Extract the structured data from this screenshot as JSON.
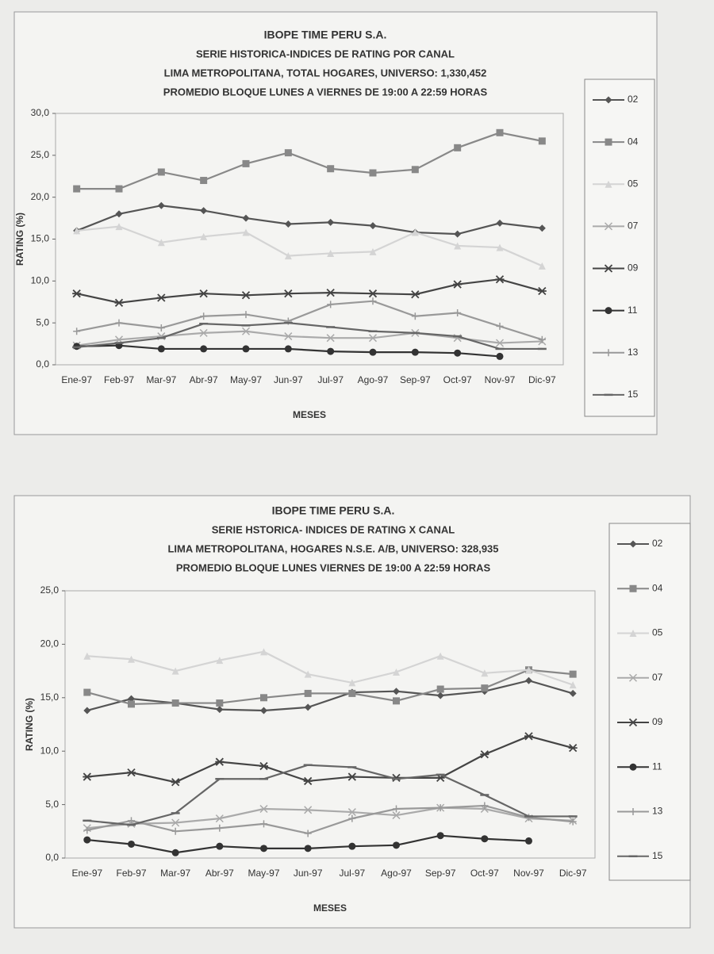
{
  "chart_data": [
    {
      "type": "line",
      "title": "IBOPE TIME PERU S.A.",
      "subtitles": [
        "SERIE HISTORICA-INDICES DE RATING POR CANAL",
        "LIMA METROPOLITANA, TOTAL HOGARES, UNIVERSO: 1,330,452",
        "PROMEDIO BLOQUE LUNES A VIERNES DE 19:00 A 22:59 HORAS"
      ],
      "x_label": "MESES",
      "y_label": "RATING (%)",
      "categories": [
        "Ene-97",
        "Feb-97",
        "Mar-97",
        "Abr-97",
        "May-97",
        "Jun-97",
        "Jul-97",
        "Ago-97",
        "Sep-97",
        "Oct-97",
        "Nov-97",
        "Dic-97"
      ],
      "ylim": [
        0,
        30
      ],
      "yticks": [
        {
          "value": 0,
          "label": "0,0"
        },
        {
          "value": 5,
          "label": "5,0"
        },
        {
          "value": 10,
          "label": "10,0"
        },
        {
          "value": 15,
          "label": "15,0"
        },
        {
          "value": 20,
          "label": "20,0"
        },
        {
          "value": 25,
          "label": "25,0"
        },
        {
          "value": 30,
          "label": "30,0"
        }
      ],
      "legend": "right",
      "series": [
        {
          "name": "02",
          "color": "#555",
          "marker": "diamond",
          "values": [
            16,
            18,
            19,
            18.4,
            17.5,
            16.8,
            17,
            16.6,
            15.8,
            15.6,
            16.9,
            16.3
          ]
        },
        {
          "name": "04",
          "color": "#888",
          "marker": "square",
          "values": [
            21,
            21,
            23,
            22,
            24,
            25.3,
            23.4,
            22.9,
            23.3,
            25.9,
            27.7,
            26.7
          ]
        },
        {
          "name": "05",
          "color": "#d4d4d4",
          "marker": "triangle",
          "values": [
            16,
            16.5,
            14.6,
            15.3,
            15.8,
            13,
            13.3,
            13.5,
            15.8,
            14.2,
            14,
            11.8
          ]
        },
        {
          "name": "07",
          "color": "#aaa",
          "marker": "x",
          "values": [
            2.3,
            3,
            3.4,
            3.8,
            4,
            3.4,
            3.2,
            3.2,
            3.8,
            3.2,
            2.6,
            2.8
          ]
        },
        {
          "name": "09",
          "color": "#444",
          "marker": "star",
          "values": [
            8.5,
            7.4,
            8,
            8.5,
            8.3,
            8.5,
            8.6,
            8.5,
            8.4,
            9.6,
            10.2,
            8.8
          ]
        },
        {
          "name": "11",
          "color": "#333",
          "marker": "circle",
          "values": [
            2.2,
            2.3,
            1.9,
            1.9,
            1.9,
            1.9,
            1.6,
            1.5,
            1.5,
            1.4,
            1,
            null
          ]
        },
        {
          "name": "13",
          "color": "#999",
          "marker": "plus",
          "values": [
            4,
            5,
            4.4,
            5.8,
            6,
            5.2,
            7.2,
            7.6,
            5.8,
            6.2,
            4.6,
            3
          ]
        },
        {
          "name": "15",
          "color": "#666",
          "marker": "dash",
          "values": [
            2.1,
            2.6,
            3.2,
            4.9,
            4.7,
            5,
            4.5,
            4,
            3.8,
            3.4,
            1.9,
            1.9
          ]
        }
      ]
    },
    {
      "type": "line",
      "title": "IBOPE TIME PERU S.A.",
      "subtitles": [
        "SERIE HSTORICA- INDICES DE RATING X CANAL",
        "LIMA METROPOLITANA, HOGARES N.S.E. A/B, UNIVERSO: 328,935",
        "PROMEDIO BLOQUE LUNES VIERNES DE 19:00 A 22:59 HORAS"
      ],
      "x_label": "MESES",
      "y_label": "RATING (%)",
      "categories": [
        "Ene-97",
        "Feb-97",
        "Mar-97",
        "Abr-97",
        "May-97",
        "Jun-97",
        "Jul-97",
        "Ago-97",
        "Sep-97",
        "Oct-97",
        "Nov-97",
        "Dic-97"
      ],
      "ylim": [
        0,
        25
      ],
      "yticks": [
        {
          "value": 0,
          "label": "0,0"
        },
        {
          "value": 5,
          "label": "5,0"
        },
        {
          "value": 10,
          "label": "10,0"
        },
        {
          "value": 15,
          "label": "15,0"
        },
        {
          "value": 20,
          "label": "20,0"
        },
        {
          "value": 25,
          "label": "25,0"
        }
      ],
      "legend": "right",
      "series": [
        {
          "name": "02",
          "color": "#555",
          "marker": "diamond",
          "values": [
            13.8,
            14.9,
            14.5,
            13.9,
            13.8,
            14.1,
            15.5,
            15.6,
            15.2,
            15.6,
            16.6,
            15.4
          ]
        },
        {
          "name": "04",
          "color": "#888",
          "marker": "square",
          "values": [
            15.5,
            14.4,
            14.5,
            14.5,
            15,
            15.4,
            15.4,
            14.7,
            15.8,
            15.9,
            17.6,
            17.2
          ]
        },
        {
          "name": "05",
          "color": "#d4d4d4",
          "marker": "triangle",
          "values": [
            18.9,
            18.6,
            17.5,
            18.5,
            19.3,
            17.2,
            16.4,
            17.4,
            18.9,
            17.3,
            17.6,
            16.2
          ]
        },
        {
          "name": "07",
          "color": "#aaa",
          "marker": "x",
          "values": [
            2.8,
            3.2,
            3.3,
            3.7,
            4.6,
            4.5,
            4.3,
            4,
            4.7,
            4.6,
            3.7,
            3.5
          ]
        },
        {
          "name": "09",
          "color": "#444",
          "marker": "star",
          "values": [
            7.6,
            8,
            7.1,
            9,
            8.6,
            7.2,
            7.6,
            7.5,
            7.5,
            9.7,
            11.4,
            10.3
          ]
        },
        {
          "name": "11",
          "color": "#333",
          "marker": "circle",
          "values": [
            1.7,
            1.3,
            0.5,
            1.1,
            0.9,
            0.9,
            1.1,
            1.2,
            2.1,
            1.8,
            1.6,
            null
          ]
        },
        {
          "name": "13",
          "color": "#999",
          "marker": "plus",
          "values": [
            2.6,
            3.5,
            2.5,
            2.8,
            3.2,
            2.3,
            3.7,
            4.6,
            4.7,
            4.9,
            3.8,
            3.4
          ]
        },
        {
          "name": "15",
          "color": "#666",
          "marker": "dash",
          "values": [
            3.5,
            3.1,
            4.2,
            7.4,
            7.4,
            8.7,
            8.5,
            7.4,
            7.8,
            5.9,
            3.9,
            3.9
          ]
        }
      ]
    }
  ]
}
